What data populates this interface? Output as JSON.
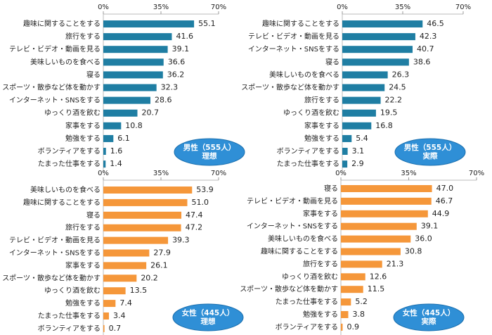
{
  "chart_data": [
    {
      "type": "bar",
      "orientation": "horizontal",
      "color": "#1f7ea3",
      "xlim": [
        0,
        70
      ],
      "xticks": [
        {
          "value": 0,
          "label": "0%"
        },
        {
          "value": 35,
          "label": "35%"
        },
        {
          "value": 70,
          "label": "70%"
        }
      ],
      "categories": [
        "趣味に関することをする",
        "旅行をする",
        "テレビ・ビデオ・動画を見る",
        "美味しいものを食べる",
        "寝る",
        "スポーツ・散歩など体を動かす",
        "インターネット・SNSをする",
        "ゆっくり酒を飲む",
        "家事をする",
        "勉強をする",
        "ボランティアをする",
        "たまった仕事をする"
      ],
      "values": [
        55.1,
        41.6,
        39.1,
        36.6,
        36.2,
        32.3,
        28.6,
        20.7,
        10.8,
        6.1,
        1.6,
        1.4
      ],
      "annotations": [
        "男性（555人）",
        "理想"
      ]
    },
    {
      "type": "bar",
      "orientation": "horizontal",
      "color": "#1f7ea3",
      "xlim": [
        0,
        70
      ],
      "xticks": [
        {
          "value": 0,
          "label": "0%"
        },
        {
          "value": 35,
          "label": "35%"
        },
        {
          "value": 70,
          "label": "70%"
        }
      ],
      "categories": [
        "趣味に関することをする",
        "テレビ・ビデオ・動画を見る",
        "インターネット・SNSをする",
        "寝る",
        "美味しいものを食べる",
        "スポーツ・散歩など体を動かす",
        "旅行をする",
        "ゆっくり酒を飲む",
        "家事をする",
        "勉強をする",
        "ボランティアをする",
        "たまった仕事をする"
      ],
      "values": [
        46.5,
        42.3,
        40.7,
        38.6,
        26.3,
        24.5,
        22.2,
        19.5,
        16.8,
        5.4,
        3.1,
        2.9
      ],
      "annotations": [
        "男性（555人）",
        "実際"
      ]
    },
    {
      "type": "bar",
      "orientation": "horizontal",
      "color": "#f5973a",
      "xlim": [
        0,
        70
      ],
      "xticks": [
        {
          "value": 0,
          "label": "0%"
        },
        {
          "value": 35,
          "label": "35%"
        },
        {
          "value": 70,
          "label": "70%"
        }
      ],
      "categories": [
        "美味しいものを食べる",
        "趣味に関することをする",
        "寝る",
        "旅行をする",
        "テレビ・ビデオ・動画を見る",
        "インターネット・SNSをする",
        "家事をする",
        "スポーツ・散歩など体を動かす",
        "ゆっくり酒を飲む",
        "勉強をする",
        "たまった仕事をする",
        "ボランティアをする"
      ],
      "values": [
        53.9,
        51.0,
        47.4,
        47.2,
        39.3,
        27.9,
        26.1,
        20.2,
        13.5,
        7.4,
        3.4,
        0.7
      ],
      "value_labels": [
        "53.9",
        "51.0",
        "47.4",
        "47.2",
        "39.3",
        "27.9",
        "26.1",
        "20.2",
        "13.5",
        "7.4",
        "3.4",
        "0.7"
      ],
      "annotations": [
        "女性（445人）",
        "理想"
      ]
    },
    {
      "type": "bar",
      "orientation": "horizontal",
      "color": "#f5973a",
      "xlim": [
        0,
        70
      ],
      "xticks": [
        {
          "value": 0,
          "label": "0%"
        },
        {
          "value": 35,
          "label": "35%"
        },
        {
          "value": 70,
          "label": "70%"
        }
      ],
      "categories": [
        "寝る",
        "テレビ・ビデオ・動画を見る",
        "家事をする",
        "インターネット・SNSをする",
        "美味しいものを食べる",
        "趣味に関することをする",
        "旅行をする",
        "ゆっくり酒を飲む",
        "スポーツ・散歩など体を動かす",
        "たまった仕事をする",
        "勉強をする",
        "ボランティアをする"
      ],
      "values": [
        47.0,
        46.7,
        44.9,
        39.1,
        36.0,
        30.8,
        21.3,
        12.6,
        11.5,
        5.2,
        3.8,
        0.9
      ],
      "value_labels": [
        "47.0",
        "46.7",
        "44.9",
        "39.1",
        "36.0",
        "30.8",
        "21.3",
        "12.6",
        "11.5",
        "5.2",
        "3.8",
        "0.9"
      ],
      "annotations": [
        "女性（445人）",
        "実際"
      ]
    }
  ]
}
